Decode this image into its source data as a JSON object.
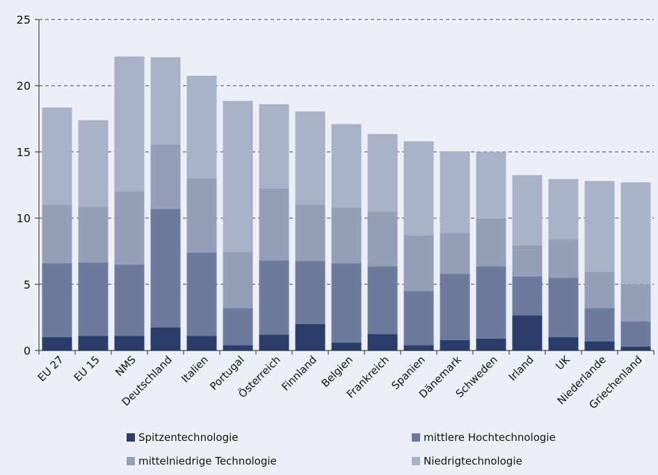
{
  "chart_data": {
    "type": "bar",
    "stacked": true,
    "categories": [
      "EU 27",
      "EU 15",
      "NMS",
      "Deutschland",
      "Italien",
      "Portugal",
      "Österreich",
      "Finnland",
      "Belgien",
      "Frankreich",
      "Spanien",
      "Dänemark",
      "Schweden",
      "Irland",
      "UK",
      "Niederlande",
      "Griechenland"
    ],
    "series": [
      {
        "name": "Spitzentechnologie",
        "color": "#2b3e6b",
        "values": [
          1.0,
          1.1,
          1.1,
          1.75,
          1.1,
          0.4,
          1.2,
          2.0,
          0.6,
          1.25,
          0.4,
          0.8,
          0.9,
          2.65,
          1.0,
          0.7,
          0.3
        ]
      },
      {
        "name": "mittlere Hochtechnologie",
        "color": "#6b7a9d",
        "values": [
          5.6,
          5.55,
          5.4,
          8.95,
          6.3,
          2.8,
          5.6,
          4.75,
          6.0,
          5.1,
          4.1,
          5.0,
          5.45,
          2.95,
          4.5,
          2.5,
          1.9
        ]
      },
      {
        "name": "mittelniedrige Technologie",
        "color": "#949eb9",
        "values": [
          4.4,
          4.2,
          5.5,
          4.85,
          5.6,
          4.25,
          5.45,
          4.25,
          4.2,
          4.15,
          4.2,
          3.05,
          3.6,
          2.35,
          2.9,
          2.75,
          2.8
        ]
      },
      {
        "name": "Niedrigtechnologie",
        "color": "#a8b1c8",
        "values": [
          7.35,
          6.55,
          10.2,
          6.6,
          7.75,
          11.4,
          6.35,
          7.05,
          6.3,
          5.85,
          7.1,
          6.2,
          5.05,
          5.3,
          4.55,
          6.85,
          7.7
        ]
      }
    ],
    "ylim": [
      0,
      25
    ],
    "yticks": [
      0,
      5,
      10,
      15,
      20,
      25
    ],
    "grid": true,
    "legend_position": "bottom",
    "title": "",
    "xlabel": "",
    "ylabel": ""
  }
}
